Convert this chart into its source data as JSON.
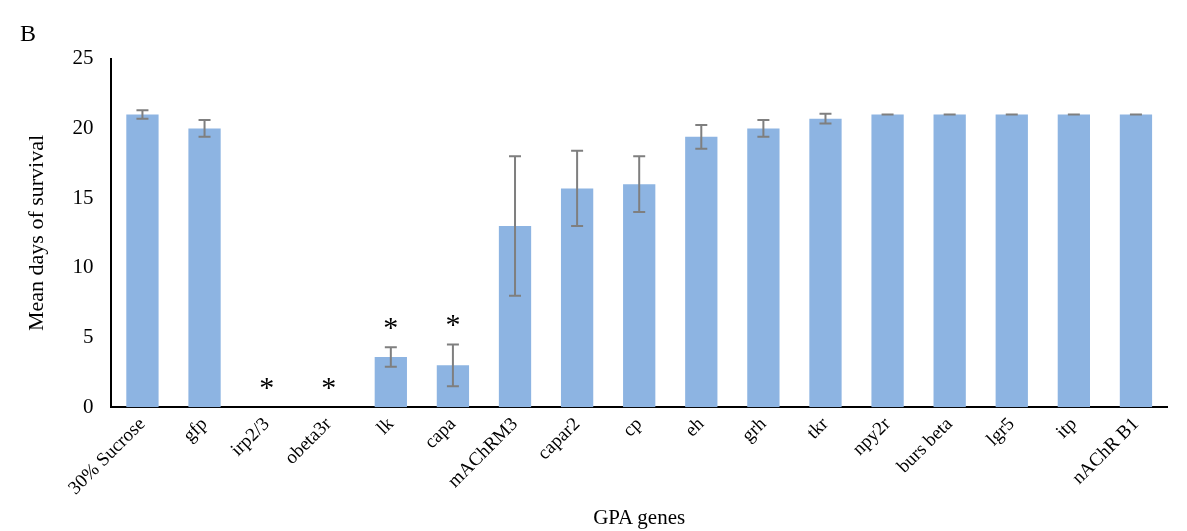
{
  "chart_data": {
    "type": "bar",
    "title": "B",
    "xlabel": "GPA genes",
    "ylabel": "Mean days of survival",
    "categories": [
      "30% Sucrose",
      "gfp",
      "irp2/3",
      "obeta3r",
      "lk",
      "capa",
      "mAChRM3",
      "capar2",
      "cp",
      "eh",
      "grh",
      "tkr",
      "npy2r",
      "burs beta",
      "lgr5",
      "itp",
      "nAChR B1"
    ],
    "series": [
      {
        "color": "#8db4e2",
        "values": [
          21,
          20,
          0,
          0,
          3.6,
          3,
          13,
          15.7,
          16,
          19.4,
          20,
          20.7,
          21,
          21,
          21,
          21,
          21
        ],
        "errors": [
          0.3,
          0.6,
          null,
          null,
          0.7,
          1.5,
          5,
          2.7,
          2,
          0.85,
          0.6,
          0.35,
          0,
          0,
          0,
          0,
          0
        ]
      }
    ],
    "ylim": [
      0,
      25
    ],
    "yticks": [
      0,
      5,
      10,
      15,
      20,
      25
    ],
    "grid": false,
    "legend": false,
    "annotations": [
      {
        "text": "*",
        "x": "irp2/3",
        "y": 0
      },
      {
        "text": "*",
        "x": "obeta3r",
        "y": 0
      },
      {
        "text": "*",
        "x": "lk",
        "y": 3.6
      },
      {
        "text": "*",
        "x": "capa",
        "y": 3
      }
    ]
  }
}
